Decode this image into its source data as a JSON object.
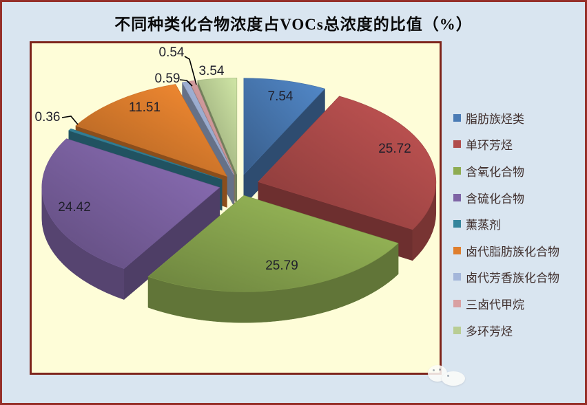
{
  "chart_data": {
    "type": "pie",
    "style": "3d-exploded",
    "title": "不同种类化合物浓度占VOCs总浓度的比值（%）",
    "unit": "%",
    "legend_position": "right",
    "grid": false,
    "series": [
      {
        "name": "脂肪族烃类",
        "value": 7.54,
        "color": "#4A7BB5"
      },
      {
        "name": "单环芳烃",
        "value": 25.72,
        "color": "#B04C4B"
      },
      {
        "name": "含氧化合物",
        "value": 25.79,
        "color": "#8EAC52"
      },
      {
        "name": "含硫化合物",
        "value": 24.42,
        "color": "#7E64A5"
      },
      {
        "name": "薰蒸剂",
        "value": 0.36,
        "color": "#35859C"
      },
      {
        "name": "卤代脂肪族化合物",
        "value": 11.51,
        "color": "#DF7E2D"
      },
      {
        "name": "卤代芳香族化合物",
        "value": 0.59,
        "color": "#A4B6DA"
      },
      {
        "name": "三卤代甲烷",
        "value": 0.54,
        "color": "#D9A0A2"
      },
      {
        "name": "多环芳烃",
        "value": 3.54,
        "color": "#B9CD94"
      }
    ],
    "data_labels": [
      "7.54",
      "25.72",
      "25.79",
      "24.42",
      "0.36",
      "11.51",
      "0.59",
      "0.54",
      "3.54"
    ]
  },
  "colors": {
    "canvas_background": "#D9E5F0",
    "plot_background": "#FEFDD8",
    "plot_border": "#7D241B",
    "outer_border": "#96302A",
    "data_label_color": "#1F1F2B",
    "legend_text_color": "#3F2E2C",
    "title_color": "#0A0A0A"
  }
}
